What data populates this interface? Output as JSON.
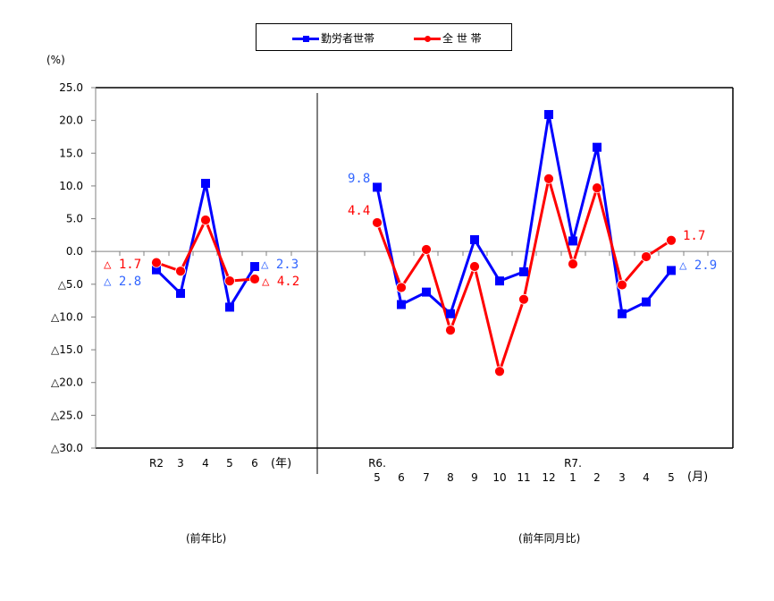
{
  "chart_data": {
    "type": "line",
    "title": "",
    "ylabel": "(%)",
    "ylim": [
      -30,
      25
    ],
    "y_ticks": [
      "25.0",
      "20.0",
      "15.0",
      "10.0",
      "5.0",
      "0.0",
      "△5.0",
      "△10.0",
      "△15.0",
      "△20.0",
      "△25.0",
      "△30.0"
    ],
    "y_tick_values": [
      25,
      20,
      15,
      10,
      5,
      0,
      -5,
      -10,
      -15,
      -20,
      -25,
      -30
    ],
    "grid": false,
    "legend_position": "top",
    "legend": [
      "勤労者世帯",
      "全 世 帯"
    ],
    "colors": {
      "workers": "#0000ff",
      "all": "#ff0000"
    },
    "panels": [
      {
        "name": "annual",
        "caption": "(前年比)",
        "x_unit": "(年)",
        "categories": [
          "R2",
          "3",
          "4",
          "5",
          "6"
        ],
        "series": [
          {
            "name": "勤労者世帯",
            "values": [
              -2.8,
              -6.4,
              10.4,
              -8.5,
              -2.3
            ]
          },
          {
            "name": "全 世 帯",
            "values": [
              -1.7,
              -3.0,
              4.8,
              -4.5,
              -4.2
            ]
          }
        ],
        "annotations": [
          {
            "text": "△ 1.7",
            "series": "全 世 帯",
            "position": "start"
          },
          {
            "text": "△ 2.8",
            "series": "勤労者世帯",
            "position": "start"
          },
          {
            "text": "△ 2.3",
            "series": "勤労者世帯",
            "position": "end"
          },
          {
            "text": "△ 4.2",
            "series": "全 世 帯",
            "position": "end"
          }
        ]
      },
      {
        "name": "monthly",
        "caption": "(前年同月比)",
        "x_unit": "(月)",
        "categories": [
          "R6. 5",
          "6",
          "7",
          "8",
          "9",
          "10",
          "11",
          "12",
          "R7. 1",
          "2",
          "3",
          "4",
          "5"
        ],
        "series": [
          {
            "name": "勤労者世帯",
            "values": [
              9.8,
              -8.1,
              -6.2,
              -9.5,
              1.8,
              -4.5,
              -3.1,
              20.9,
              1.6,
              15.9,
              -9.5,
              -7.7,
              -2.9
            ]
          },
          {
            "name": "全 世 帯",
            "values": [
              4.4,
              -5.5,
              0.3,
              -12.0,
              -2.3,
              -18.3,
              -7.3,
              11.1,
              -1.9,
              9.7,
              -5.1,
              -0.8,
              1.7
            ]
          }
        ],
        "annotations": [
          {
            "text": "9.8",
            "series": "勤労者世帯",
            "position": "start"
          },
          {
            "text": "4.4",
            "series": "全 世 帯",
            "position": "start"
          },
          {
            "text": "1.7",
            "series": "全 世 帯",
            "position": "end"
          },
          {
            "text": "△ 2.9",
            "series": "勤労者世帯",
            "position": "end"
          }
        ]
      }
    ]
  },
  "legend": {
    "workers_label": "勤労者世帯",
    "all_label": "全 世 帯",
    "workers_color": "#0000ff",
    "all_color": "#ff0000"
  },
  "axis": {
    "unit": "(%)"
  },
  "captions": {
    "left": "(前年比)",
    "right": "(前年同月比)"
  }
}
